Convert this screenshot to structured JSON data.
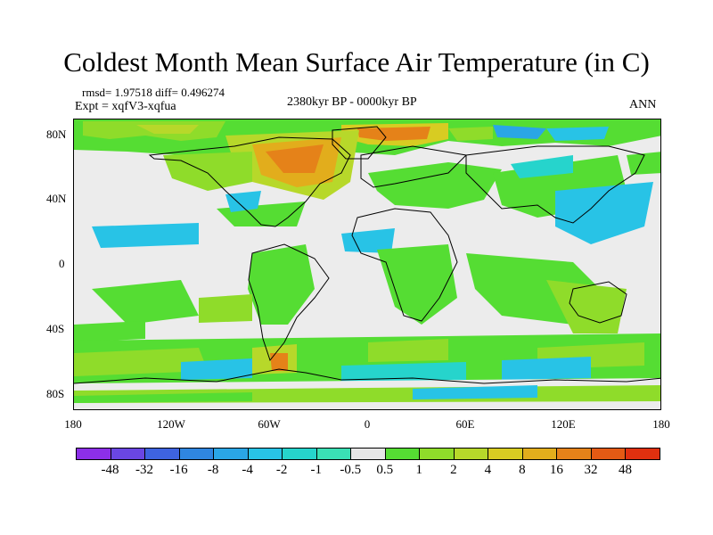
{
  "title": "Coldest Month Mean Surface Air Temperature (in C)",
  "stats": "rmsd= 1.97518 diff= 0.496274",
  "experiment": "Expt = xqfV3-xqfua",
  "period": "2380kyr BP - 0000kyr BP",
  "season": "ANN",
  "lat_ticks": [
    "80N",
    "40N",
    "0",
    "40S",
    "80S"
  ],
  "lon_ticks": [
    "180",
    "120W",
    "60W",
    "0",
    "60E",
    "120E",
    "180"
  ],
  "colorbar": {
    "labels": [
      "-48",
      "-32",
      "-16",
      "-8",
      "-4",
      "-2",
      "-1",
      "-0.5",
      "0.5",
      "1",
      "2",
      "4",
      "8",
      "16",
      "32",
      "48"
    ],
    "colors": [
      "#8c2fe8",
      "#6a46e3",
      "#3e63e0",
      "#2f86e0",
      "#2aa6e6",
      "#28c3e6",
      "#26d4cc",
      "#3adfb4",
      "#e6e6e6",
      "#55dd33",
      "#8fdc2a",
      "#b7d82a",
      "#d8cc22",
      "#e2ad1c",
      "#e58219",
      "#e45a14",
      "#e0300f"
    ]
  }
}
